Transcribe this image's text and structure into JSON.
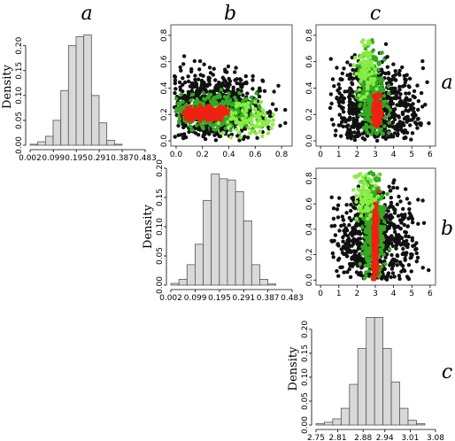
{
  "headers": {
    "col_a": "a",
    "col_b": "b",
    "col_c": "c",
    "row_a": "a",
    "row_b": "b",
    "row_c": "c"
  },
  "colors": {
    "bar_fill": "#d9d9d9",
    "bar_stroke": "#555555",
    "cold": "#111111",
    "mid": "#33aa22",
    "bright": "#88ee44",
    "hot": "#ee2211"
  },
  "chart_data": [
    {
      "id": "hist_a",
      "type": "bar",
      "ylabel": "Density",
      "bin_start": 0.002,
      "bin_width": 0.03206,
      "values": [
        0.002,
        0.007,
        0.018,
        0.05,
        0.11,
        0.2,
        0.218,
        0.222,
        0.1,
        0.045,
        0.01,
        0.002
      ],
      "xticks": [
        0.002,
        0.099,
        0.195,
        0.291,
        0.387,
        0.483
      ],
      "xticklabels": [
        "0.002",
        "0.099",
        "0.195",
        "0.291",
        "0.387",
        "0.483"
      ],
      "yticks": [
        0,
        0.05,
        0.1,
        0.15,
        0.2
      ],
      "yticklabels": [
        "0.00",
        "0.05",
        "0.10",
        "0.15",
        "0.20"
      ],
      "xlim": [
        0.002,
        0.483
      ],
      "ylim": [
        0,
        0.235
      ]
    },
    {
      "id": "scatter_ab",
      "type": "scatter",
      "xticks": [
        0,
        0.2,
        0.4,
        0.6,
        0.8
      ],
      "xticklabels": [
        "0.0",
        "0.2",
        "0.4",
        "0.6",
        "0.8"
      ],
      "yticks": [
        0,
        0.2,
        0.4,
        0.6,
        0.8
      ],
      "yticklabels": [
        "0.0",
        "0.2",
        "0.4",
        "0.6",
        "0.8"
      ],
      "xlim": [
        -0.04,
        0.88
      ],
      "ylim": [
        -0.04,
        0.88
      ],
      "clusters": [
        {
          "color_key": "cold",
          "n": 650,
          "mx": 0.28,
          "my": 0.26,
          "sx": 0.2,
          "sy": 0.14,
          "xmin": -0.02,
          "xmax": 0.85,
          "ymin": 0.0,
          "ymax": 0.8
        },
        {
          "color_key": "mid",
          "n": 420,
          "mx": 0.3,
          "my": 0.22,
          "sx": 0.16,
          "sy": 0.06,
          "xmin": -0.02,
          "xmax": 0.65,
          "ymin": 0.05,
          "ymax": 0.42
        },
        {
          "color_key": "bright",
          "n": 100,
          "mx": 0.55,
          "my": 0.17,
          "sx": 0.12,
          "sy": 0.07,
          "xmin": 0.3,
          "xmax": 0.75,
          "ymin": 0.02,
          "ymax": 0.3
        },
        {
          "color_key": "hot",
          "n": 300,
          "mx": 0.22,
          "my": 0.21,
          "sx": 0.09,
          "sy": 0.025,
          "xmin": 0.05,
          "xmax": 0.4,
          "ymin": 0.14,
          "ymax": 0.27
        }
      ]
    },
    {
      "id": "scatter_ac",
      "type": "scatter",
      "xticks": [
        0,
        1,
        2,
        3,
        4,
        5,
        6
      ],
      "xticklabels": [
        "0",
        "1",
        "2",
        "3",
        "4",
        "5",
        "6"
      ],
      "yticks": [
        0,
        0.2,
        0.4,
        0.6,
        0.8
      ],
      "yticklabels": [
        "0.0",
        "0.2",
        "0.4",
        "0.6",
        "0.8"
      ],
      "xlim": [
        -0.25,
        6.3
      ],
      "ylim": [
        -0.04,
        0.88
      ],
      "clusters": [
        {
          "color_key": "cold",
          "n": 700,
          "mx": 3.0,
          "my": 0.26,
          "sx": 1.2,
          "sy": 0.17,
          "xmin": 0.5,
          "xmax": 6.1,
          "ymin": 0.0,
          "ymax": 0.85
        },
        {
          "color_key": "mid",
          "n": 320,
          "mx": 2.8,
          "my": 0.35,
          "sx": 0.35,
          "sy": 0.18,
          "xmin": 1.8,
          "xmax": 3.9,
          "ymin": 0.05,
          "ymax": 0.78,
          "slope": -2.4
        },
        {
          "color_key": "bright",
          "n": 80,
          "mx": 2.45,
          "my": 0.55,
          "sx": 0.25,
          "sy": 0.12,
          "xmin": 1.5,
          "xmax": 3.3,
          "ymin": 0.3,
          "ymax": 0.8,
          "slope": -2.4
        },
        {
          "color_key": "hot",
          "n": 200,
          "mx": 3.1,
          "my": 0.22,
          "sx": 0.1,
          "sy": 0.06,
          "xmin": 2.8,
          "xmax": 3.5,
          "ymin": 0.1,
          "ymax": 0.36
        }
      ]
    },
    {
      "id": "hist_b",
      "type": "bar",
      "ylabel": "Density",
      "bin_start": 0.002,
      "bin_width": 0.03206,
      "values": [
        0.003,
        0.01,
        0.035,
        0.07,
        0.145,
        0.19,
        0.182,
        0.18,
        0.16,
        0.11,
        0.035,
        0.01,
        0.002
      ],
      "xticks": [
        0.002,
        0.099,
        0.195,
        0.291,
        0.387,
        0.483
      ],
      "xticklabels": [
        "0.002",
        "0.099",
        "0.195",
        "0.291",
        "0.387",
        "0.483"
      ],
      "yticks": [
        0,
        0.05,
        0.1,
        0.15,
        0.2
      ],
      "yticklabels": [
        "0.00",
        "0.05",
        "0.10",
        "0.15",
        "0.20"
      ],
      "xlim": [
        0.002,
        0.483
      ],
      "ylim": [
        0,
        0.2
      ]
    },
    {
      "id": "scatter_bc",
      "type": "scatter",
      "xticks": [
        0,
        1,
        2,
        3,
        4,
        5,
        6
      ],
      "xticklabels": [
        "0",
        "1",
        "2",
        "3",
        "4",
        "5",
        "6"
      ],
      "yticks": [
        0,
        0.2,
        0.4,
        0.6,
        0.8
      ],
      "yticklabels": [
        "0.0",
        "0.2",
        "0.4",
        "0.6",
        "0.8"
      ],
      "xlim": [
        -0.25,
        6.3
      ],
      "ylim": [
        -0.04,
        0.88
      ],
      "clusters": [
        {
          "color_key": "cold",
          "n": 700,
          "mx": 3.1,
          "my": 0.3,
          "sx": 1.1,
          "sy": 0.2,
          "xmin": 0.6,
          "xmax": 6.1,
          "ymin": 0.0,
          "ymax": 0.8
        },
        {
          "color_key": "mid",
          "n": 420,
          "mx": 2.9,
          "my": 0.4,
          "sx": 0.3,
          "sy": 0.22,
          "xmin": 2.0,
          "xmax": 3.8,
          "ymin": 0.0,
          "ymax": 0.86
        },
        {
          "color_key": "bright",
          "n": 90,
          "mx": 2.5,
          "my": 0.68,
          "sx": 0.3,
          "sy": 0.1,
          "xmin": 1.8,
          "xmax": 3.2,
          "ymin": 0.45,
          "ymax": 0.85
        },
        {
          "color_key": "hot",
          "n": 260,
          "mx": 3.0,
          "my": 0.27,
          "sx": 0.07,
          "sy": 0.15,
          "xmin": 2.8,
          "xmax": 3.25,
          "ymin": 0.0,
          "ymax": 0.7
        }
      ]
    },
    {
      "id": "hist_c",
      "type": "bar",
      "ylabel": "Density",
      "bin_start": 2.75,
      "bin_width": 0.0231,
      "values": [
        0.003,
        0.006,
        0.013,
        0.035,
        0.085,
        0.16,
        0.225,
        0.225,
        0.16,
        0.09,
        0.035,
        0.01,
        0.003
      ],
      "xticks": [
        2.75,
        2.81,
        2.88,
        2.94,
        3.01,
        3.08
      ],
      "xticklabels": [
        "2.75",
        "2.81",
        "2.88",
        "2.94",
        "3.01",
        "3.08"
      ],
      "yticks": [
        0,
        0.05,
        0.1,
        0.15,
        0.2
      ],
      "yticklabels": [
        "0.00",
        "0.05",
        "0.10",
        "0.15",
        "0.20"
      ],
      "xlim": [
        2.75,
        3.08
      ],
      "ylim": [
        0,
        0.235
      ]
    }
  ]
}
